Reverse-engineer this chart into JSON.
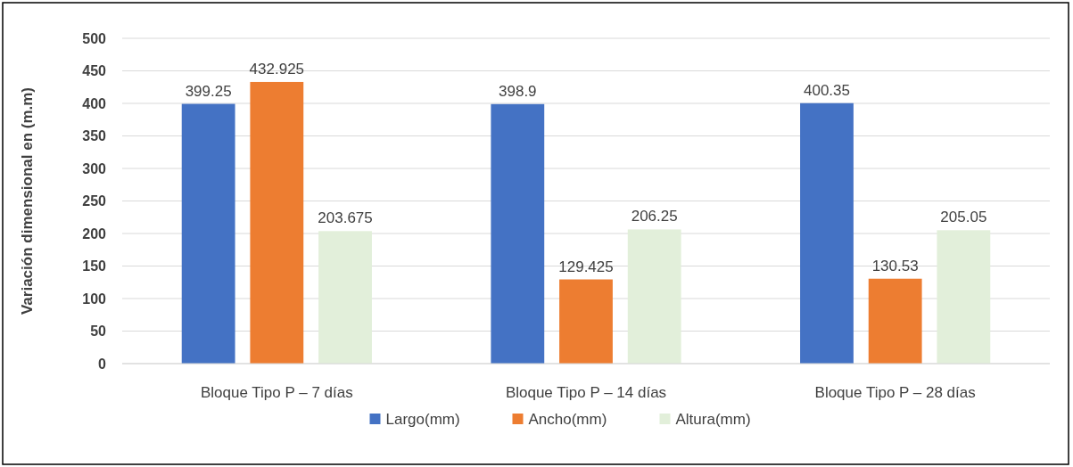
{
  "chart_data": {
    "type": "bar",
    "ylabel": "Variación dimensional en (m.m)",
    "categories": [
      "Bloque Tipo P – 7 días",
      "Bloque Tipo P – 14 días",
      "Bloque Tipo P – 28 días"
    ],
    "series": [
      {
        "name": "Largo(mm)",
        "color": "#4472c4",
        "values": [
          399.25,
          398.9,
          400.35
        ]
      },
      {
        "name": "Ancho(mm)",
        "color": "#ed7d31",
        "values": [
          432.925,
          129.425,
          130.53
        ]
      },
      {
        "name": "Altura(mm)",
        "color": "#e2efda",
        "values": [
          203.675,
          206.25,
          205.05
        ]
      }
    ],
    "ylim": [
      0,
      500
    ],
    "yticks": [
      0,
      50,
      100,
      150,
      200,
      250,
      300,
      350,
      400,
      450,
      500
    ],
    "grid": "y",
    "legend": "bottom",
    "data_labels": true
  }
}
